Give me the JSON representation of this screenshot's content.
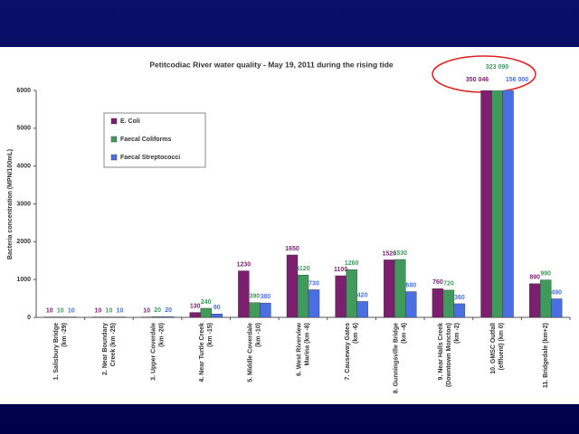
{
  "chart_data": {
    "type": "bar",
    "title": "Petitcodiac River water quality - May 19, 2011 during the rising tide",
    "y_label": "Bacteria concentration (MPN/100mL)",
    "categories": [
      [
        "1. Salisbury Bridge",
        "(km -29)"
      ],
      [
        "2. Near Boundary",
        "Creek (km -25)"
      ],
      [
        "3. Upper Coverdale",
        "(km -20)"
      ],
      [
        "4. Near Turtle Creek",
        "(km -15)"
      ],
      [
        "5. Middle Coverdale",
        "(km -10)"
      ],
      [
        "6. West Riverview",
        "Marina (km -8)"
      ],
      [
        "7. Causeway Gates",
        "(km -6)"
      ],
      [
        "8. Gunningsville Bridge",
        "(km -4)"
      ],
      [
        "9. Near Halls Creek",
        "(Downtown Moncton)",
        "(km -2)"
      ],
      [
        "10. GMSC Outfall",
        "(effluent) (km 0)"
      ],
      [
        "11. Bridgedale (km+2)"
      ]
    ],
    "series": [
      {
        "name": "E. Coli",
        "color": "#7b1f6f",
        "values": [
          10,
          10,
          10,
          130,
          1230,
          1650,
          1100,
          1520,
          760,
          350046,
          890
        ],
        "value_labels": [
          "10",
          "10",
          "10",
          "130",
          "1230",
          "1650",
          "1100",
          "1520",
          "760",
          "350 046",
          "890"
        ]
      },
      {
        "name": "Faecal Coliforms",
        "color": "#3f9a5c",
        "values": [
          10,
          10,
          20,
          240,
          390,
          1120,
          1260,
          1530,
          720,
          323090,
          990
        ],
        "value_labels": [
          "10",
          "10",
          "20",
          "240",
          "390",
          "1120",
          "1260",
          "1530",
          "720",
          "323 090",
          "990"
        ]
      },
      {
        "name": "Faecal Streptococci",
        "color": "#4a6fe3",
        "values": [
          10,
          10,
          20,
          90,
          380,
          730,
          420,
          680,
          360,
          156000,
          490
        ],
        "value_labels": [
          "10",
          "10",
          "20",
          "90",
          "380",
          "730",
          "420",
          "680",
          "360",
          "156 000",
          "490"
        ]
      }
    ],
    "ylim": [
      0,
      6000
    ],
    "yticks": [
      0,
      1000,
      2000,
      3000,
      4000,
      5000,
      6000
    ],
    "grid": false
  }
}
